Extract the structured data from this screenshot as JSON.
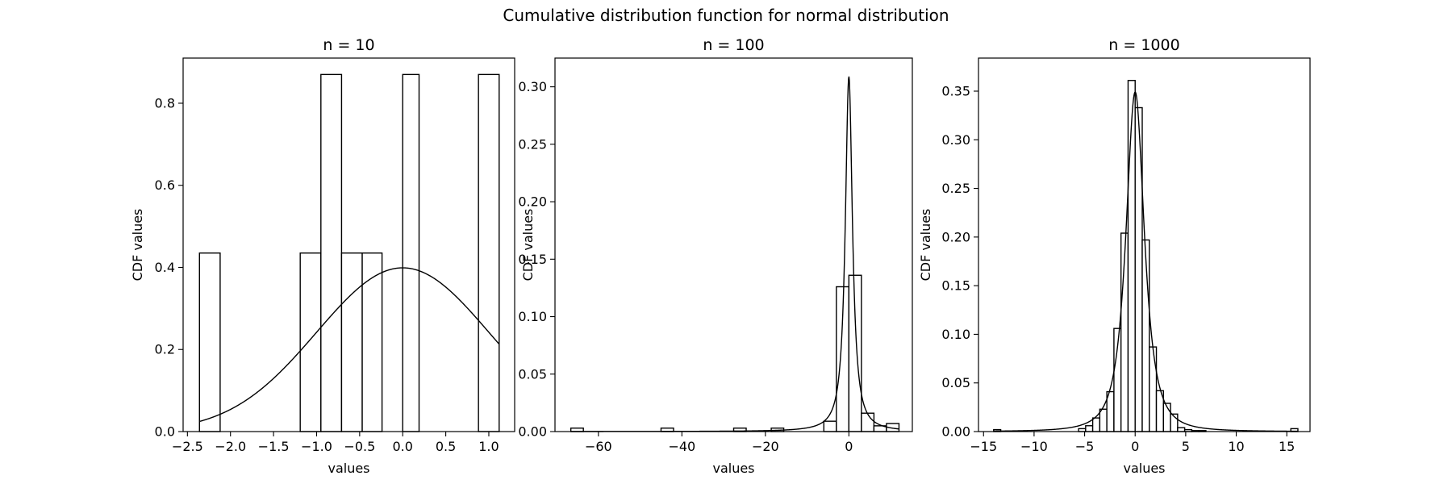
{
  "figure": {
    "title": "Cumulative distribution function for normal distribution"
  },
  "chart_data": [
    {
      "type": "bar",
      "title": "n = 10",
      "xlabel": "values",
      "ylabel": "CDF values",
      "xlim": [
        -2.55,
        1.3
      ],
      "ylim": [
        0,
        0.91
      ],
      "xticks": [
        -2.5,
        -2.0,
        -1.5,
        -1.0,
        -0.5,
        0.0,
        0.5,
        1.0
      ],
      "xtick_labels": [
        "−2.5",
        "−2.0",
        "−1.5",
        "−1.0",
        "−0.5",
        "0.0",
        "0.5",
        "1.0"
      ],
      "yticks": [
        0.0,
        0.2,
        0.4,
        0.6,
        0.8
      ],
      "ytick_labels": [
        "0.0",
        "0.2",
        "0.4",
        "0.6",
        "0.8"
      ],
      "histogram": {
        "bin_edges": [
          -2.36,
          -2.12,
          -1.19,
          -0.95,
          -0.71,
          -0.47,
          -0.24,
          0.0,
          0.19,
          0.88,
          1.12
        ],
        "heights": [
          0.435,
          0.0,
          0.435,
          0.87,
          0.435,
          0.435,
          0.0,
          0.87,
          0.0,
          0.87
        ]
      },
      "curve": {
        "kind": "normal_pdf",
        "mu": 0,
        "sigma": 1,
        "x_range": [
          -2.36,
          1.12
        ],
        "scale": 1.0
      }
    },
    {
      "type": "bar",
      "title": "n = 100",
      "xlabel": "values",
      "ylabel": "CDF values",
      "xlim": [
        -70.4,
        15.2
      ],
      "ylim": [
        0,
        0.325
      ],
      "xticks": [
        -60,
        -40,
        -20,
        0
      ],
      "xtick_labels": [
        "−60",
        "−40",
        "−20",
        "0"
      ],
      "yticks": [
        0.0,
        0.05,
        0.1,
        0.15,
        0.2,
        0.25,
        0.3
      ],
      "ytick_labels": [
        "0.00",
        "0.05",
        "0.10",
        "0.15",
        "0.20",
        "0.25",
        "0.30"
      ],
      "histogram": {
        "bin_edges": [
          -66.6,
          -63.6,
          -45.0,
          -42.0,
          -27.6,
          -24.6,
          -18.6,
          -15.6,
          -6.0,
          -3.0,
          0.0,
          3.0,
          6.0,
          9.0,
          12.0
        ],
        "heights": [
          0.003,
          0.0,
          0.003,
          0.0,
          0.003,
          0.0,
          0.003,
          0.0,
          0.009,
          0.126,
          0.136,
          0.016,
          0.005,
          0.007
        ]
      },
      "curve": {
        "kind": "cauchy_pdf",
        "x0": 0,
        "gamma": 1.03,
        "x_range": [
          -66.6,
          12.0
        ],
        "scale": 1.0
      }
    },
    {
      "type": "bar",
      "title": "n = 1000",
      "xlabel": "values",
      "ylabel": "CDF values",
      "xlim": [
        -15.5,
        17.3
      ],
      "ylim": [
        0,
        0.384
      ],
      "xticks": [
        -15,
        -10,
        -5,
        0,
        5,
        10,
        15
      ],
      "xtick_labels": [
        "−15",
        "−10",
        "−5",
        "0",
        "5",
        "10",
        "15"
      ],
      "yticks": [
        0.0,
        0.05,
        0.1,
        0.15,
        0.2,
        0.25,
        0.3,
        0.35
      ],
      "ytick_labels": [
        "0.00",
        "0.05",
        "0.10",
        "0.15",
        "0.20",
        "0.25",
        "0.30",
        "0.35"
      ],
      "histogram": {
        "bin_edges": [
          -14.0,
          -13.3,
          -12.6,
          -11.9,
          -11.2,
          -10.5,
          -9.8,
          -9.1,
          -8.4,
          -7.7,
          -7.0,
          -6.3,
          -5.6,
          -4.9,
          -4.2,
          -3.5,
          -2.8,
          -2.1,
          -1.4,
          -0.7,
          0.0,
          0.7,
          1.4,
          2.1,
          2.8,
          3.5,
          4.2,
          4.9,
          5.6,
          6.3,
          7.0,
          7.7,
          8.4,
          9.1,
          9.8,
          10.5,
          11.2,
          11.9,
          12.6,
          13.3,
          14.0,
          14.7,
          15.4,
          16.1
        ],
        "heights": [
          0.002,
          0.0,
          0.0,
          0.0,
          0.0,
          0.0,
          0.0,
          0.0,
          0.0,
          0.0,
          0.0,
          0.0,
          0.003,
          0.006,
          0.014,
          0.023,
          0.041,
          0.106,
          0.204,
          0.361,
          0.333,
          0.197,
          0.087,
          0.042,
          0.029,
          0.018,
          0.004,
          0.002,
          0.001,
          0.001,
          0.0,
          0.0,
          0.0,
          0.0,
          0.0,
          0.0,
          0.0,
          0.0,
          0.0,
          0.0,
          0.0,
          0.0,
          0.003
        ]
      },
      "curve": {
        "kind": "student_t_pdf",
        "df": 1.8,
        "x_range": [
          -14.0,
          16.1
        ],
        "scale": 1.0
      }
    }
  ]
}
